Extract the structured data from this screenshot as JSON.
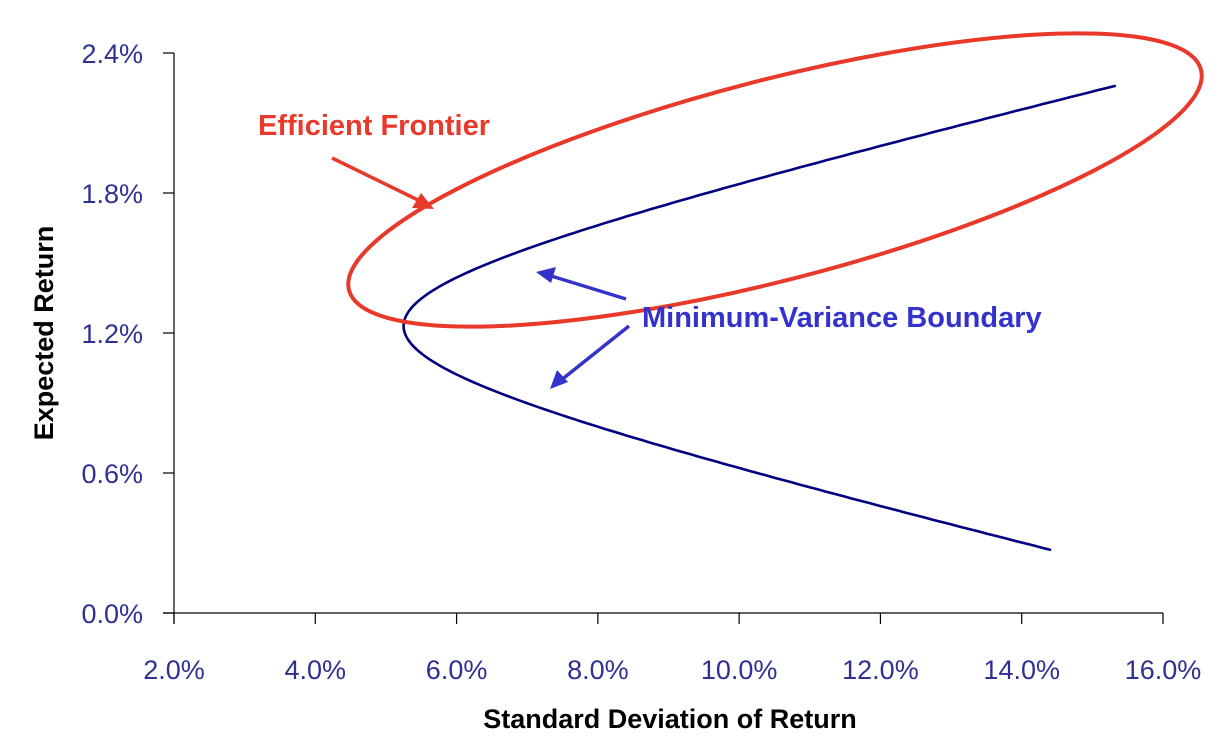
{
  "chart_data": {
    "type": "line",
    "title": "",
    "xlabel": "Standard Deviation of Return",
    "ylabel": "Expected Return",
    "xlim": [
      2.0,
      16.0
    ],
    "ylim": [
      0.0,
      2.4
    ],
    "x_ticks": [
      "2.0%",
      "4.0%",
      "6.0%",
      "8.0%",
      "10.0%",
      "12.0%",
      "14.0%",
      "16.0%"
    ],
    "y_ticks": [
      "0.0%",
      "0.6%",
      "1.2%",
      "1.8%",
      "2.4%"
    ],
    "grid": false,
    "legend": "none",
    "series": [
      {
        "name": "Minimum-Variance Boundary",
        "color": "#000080",
        "shape": "hyperbola",
        "min_variance_point": {
          "sd": 5.25,
          "ret": 1.23
        },
        "slope_k": 0.0715,
        "ret_range": [
          0.27,
          2.26
        ],
        "points": [
          {
            "sd": 14.4,
            "ret": 0.27
          },
          {
            "sd": 12.0,
            "ret": 0.44
          },
          {
            "sd": 10.0,
            "ret": 0.62
          },
          {
            "sd": 8.0,
            "ret": 0.8
          },
          {
            "sd": 6.0,
            "ret": 1.03
          },
          {
            "sd": 5.25,
            "ret": 1.23
          },
          {
            "sd": 6.0,
            "ret": 1.44
          },
          {
            "sd": 8.0,
            "ret": 1.66
          },
          {
            "sd": 10.0,
            "ret": 1.84
          },
          {
            "sd": 12.0,
            "ret": 2.02
          },
          {
            "sd": 14.0,
            "ret": 2.16
          },
          {
            "sd": 15.4,
            "ret": 2.26
          }
        ]
      }
    ],
    "annotations": [
      {
        "text": "Efficient Frontier",
        "color": "#e8392a",
        "target": "upper branch of boundary (encircled by red ellipse)"
      },
      {
        "text": "Minimum-Variance Boundary",
        "color": "#3333cc",
        "target": "both branches (two arrows)"
      }
    ]
  },
  "colors": {
    "tick_label": "#2e3192",
    "curve": "#000080",
    "frontier": "#e8392a",
    "boundary_label": "#3333cc",
    "axis": "#000000"
  }
}
